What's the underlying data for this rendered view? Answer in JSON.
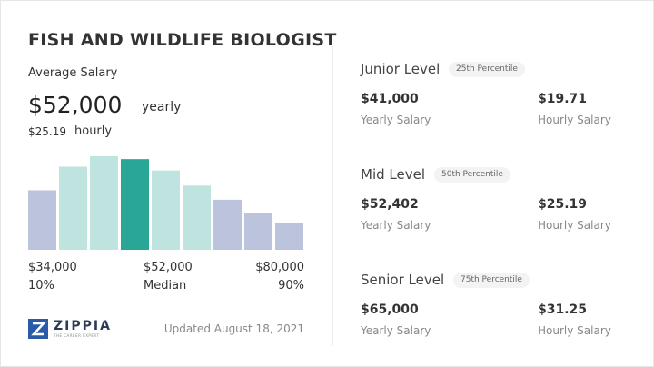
{
  "title": "FISH AND WILDLIFE BIOLOGIST",
  "average": {
    "label": "Average Salary",
    "yearly": "$52,000",
    "yearly_unit": "yearly",
    "hourly": "$25.19",
    "hourly_unit": "hourly"
  },
  "histogram": {
    "values": [
      63,
      88,
      99,
      96,
      84,
      68,
      53,
      39,
      28
    ],
    "ylim": [
      0,
      100
    ],
    "colors": [
      "#bcc3dc",
      "#bfe4df",
      "#bfe4df",
      "#2aa696",
      "#bfe4df",
      "#bfe4df",
      "#bcc3dc",
      "#bcc3dc",
      "#bcc3dc"
    ]
  },
  "markers": [
    {
      "salary": "$34,000",
      "label": "10%"
    },
    {
      "salary": "$52,000",
      "label": "Median"
    },
    {
      "salary": "$80,000",
      "label": "90%"
    }
  ],
  "logo": {
    "name": "ZIPPIA",
    "tagline": "THE CAREER EXPERT"
  },
  "updated": "Updated August 18, 2021",
  "levels": [
    {
      "name": "Junior Level",
      "percentile": "25th Percentile",
      "yearly": "$41,000",
      "yearly_label": "Yearly Salary",
      "hourly": "$19.71",
      "hourly_label": "Hourly Salary"
    },
    {
      "name": "Mid Level",
      "percentile": "50th Percentile",
      "yearly": "$52,402",
      "yearly_label": "Yearly Salary",
      "hourly": "$25.19",
      "hourly_label": "Hourly Salary"
    },
    {
      "name": "Senior Level",
      "percentile": "75th Percentile",
      "yearly": "$65,000",
      "yearly_label": "Yearly Salary",
      "hourly": "$31.25",
      "hourly_label": "Hourly Salary"
    }
  ]
}
